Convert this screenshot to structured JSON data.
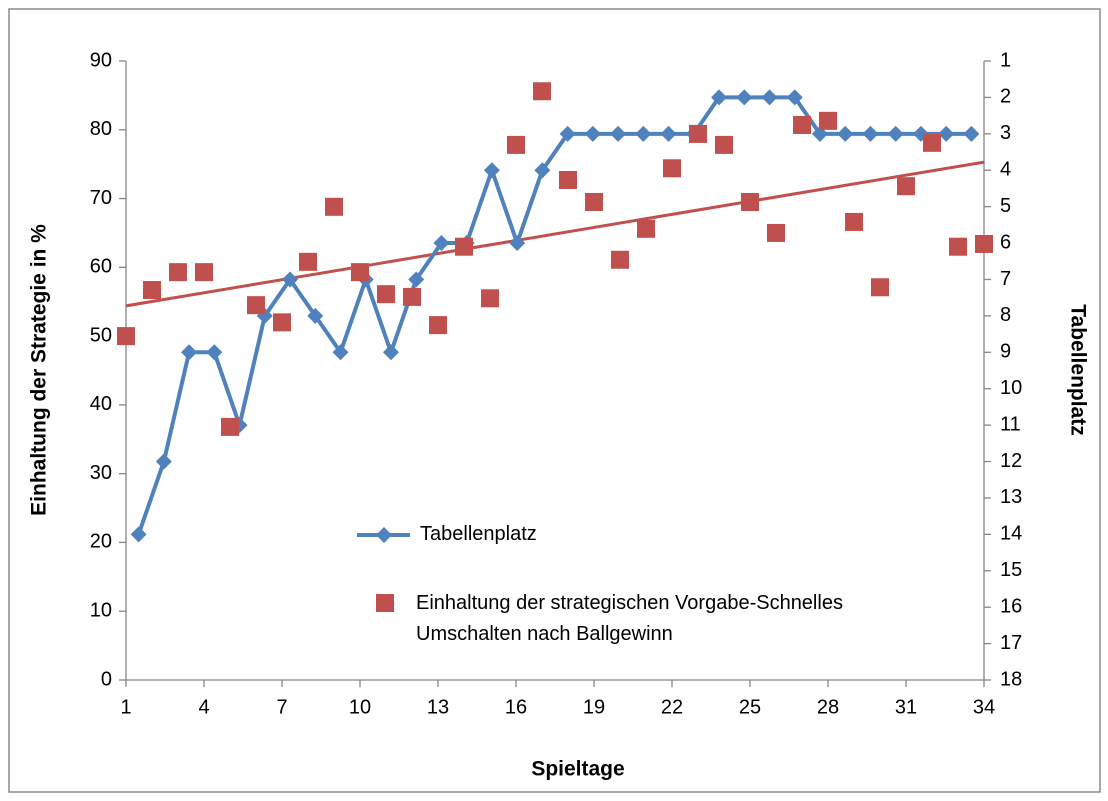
{
  "chart_data": {
    "type": "combo",
    "xlabel": "Spieltage",
    "ylabel": "Einhaltung der Strategie in %",
    "y2label": "Tabellenplatz",
    "x": [
      1,
      2,
      3,
      4,
      5,
      6,
      7,
      8,
      9,
      10,
      11,
      12,
      13,
      14,
      15,
      16,
      17,
      18,
      19,
      20,
      21,
      22,
      23,
      24,
      25,
      26,
      27,
      28,
      29,
      30,
      31,
      32,
      33,
      34
    ],
    "xlim": [
      1,
      34
    ],
    "xticks": [
      1,
      4,
      7,
      10,
      13,
      16,
      19,
      22,
      25,
      28,
      31,
      34
    ],
    "ylim": [
      0,
      90
    ],
    "yticks": [
      0,
      10,
      20,
      30,
      40,
      50,
      60,
      70,
      80,
      90
    ],
    "y2lim": [
      18,
      1
    ],
    "y2ticks": [
      1,
      2,
      3,
      4,
      5,
      6,
      7,
      8,
      9,
      10,
      11,
      12,
      13,
      14,
      15,
      16,
      17,
      18
    ],
    "series": [
      {
        "name": "Tabellenplatz",
        "type": "line",
        "axis": "y2",
        "color": "#4f81bd",
        "values": [
          14,
          12,
          9,
          9,
          11,
          8,
          7,
          8,
          9,
          7,
          9,
          7,
          6,
          6,
          4,
          6,
          4,
          3,
          3,
          3,
          3,
          3,
          3,
          2,
          2,
          2,
          2,
          3,
          3,
          3,
          3,
          3,
          3,
          3
        ]
      },
      {
        "name": "Einhaltung der strategischen Vorgabe-Schnelles Umschalten nach Ballgewinn",
        "type": "scatter",
        "color": "#c0504d",
        "values": [
          50.0,
          56.7,
          59.3,
          59.3,
          36.8,
          54.5,
          52.0,
          60.8,
          68.8,
          59.3,
          56.1,
          55.7,
          51.6,
          63.0,
          55.5,
          77.8,
          85.6,
          72.7,
          69.5,
          61.1,
          65.6,
          74.4,
          79.4,
          77.8,
          69.5,
          65.0,
          80.7,
          81.3,
          66.6,
          57.1,
          71.8,
          78.1,
          63.0,
          63.4
        ]
      }
    ],
    "trendline": {
      "x": [
        1,
        34
      ],
      "values": [
        54.4,
        75.3
      ],
      "color": "#c0504d"
    }
  }
}
